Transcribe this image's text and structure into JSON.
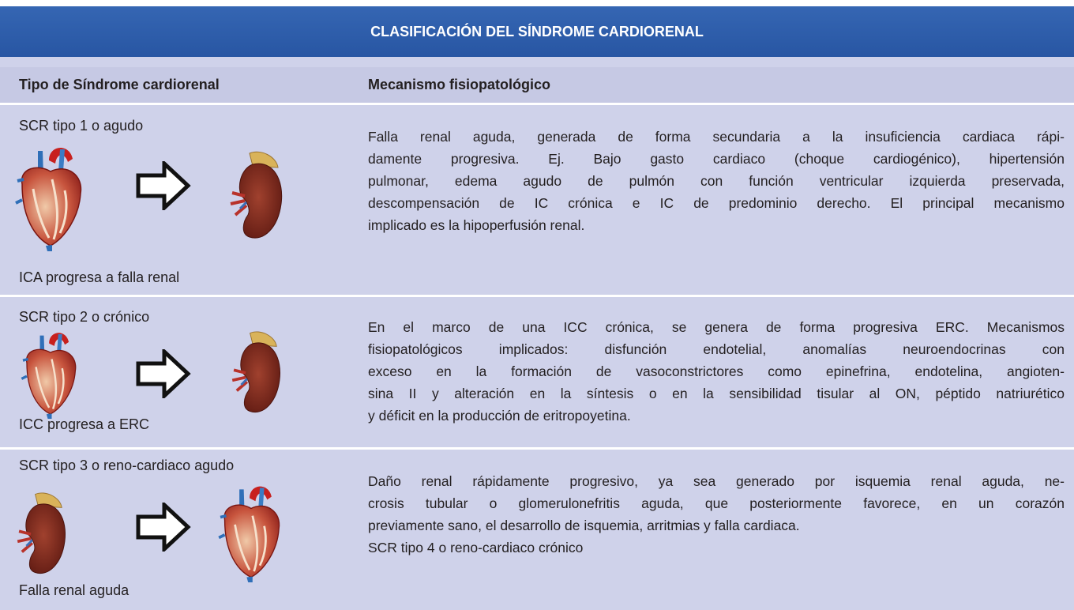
{
  "title": "CLASIFICACIÓN DEL SÍNDROME CARDIORENAL",
  "table": {
    "header": [
      "Tipo de Síndrome cardiorenal",
      "Mecanismo  fisiopatológico"
    ],
    "rows": [
      {
        "type": "SCR tipo 1 o agudo",
        "caption": "ICA progresa a falla renal",
        "mechanism": [
          [
            "Falla renal aguda, generada de forma secundaria a la insuficiencia cardiaca rápi-",
            "damente progresiva. Ej. Bajo gasto cardiaco (choque cardiogénico), hipertensión",
            "pulmonar, edema agudo de pulmón con función ventricular izquierda preservada,",
            "descompensación de IC crónica e IC de predominio derecho. El principal mecanismo",
            "implicado es la hipoperfusión renal."
          ]
        ]
      },
      {
        "type": "SCR tipo 2 o crónico",
        "caption": "ICC progresa a  ERC",
        "mechanism": [
          [
            "En el marco de una ICC crónica, se genera de forma progresiva ERC. Mecanismos",
            "fisiopatológicos implicados: disfunción endotelial, anomalías neuroendocrinas con",
            "exceso en la formación de vasoconstrictores como epinefrina, endotelina, angioten-",
            "sina II y alteración en la síntesis o en la sensibilidad tisular al ON, péptido natriurético",
            "y déficit en la producción de eritropoyetina."
          ]
        ]
      },
      {
        "type": "SCR tipo 3 o reno-cardiaco agudo",
        "caption": "Falla renal aguda",
        "mechanism": [
          [
            "Daño renal rápidamente progresivo, ya sea generado por isquemia renal aguda, ne-",
            "crosis tubular o glomerulonefritis aguda, que posteriormente favorece, en un corazón",
            "previamente sano, el desarrollo de isquemia, arritmias y falla cardiaca."
          ],
          [
            "SCR tipo 4 o reno-cardiaco crónico"
          ]
        ]
      }
    ]
  }
}
